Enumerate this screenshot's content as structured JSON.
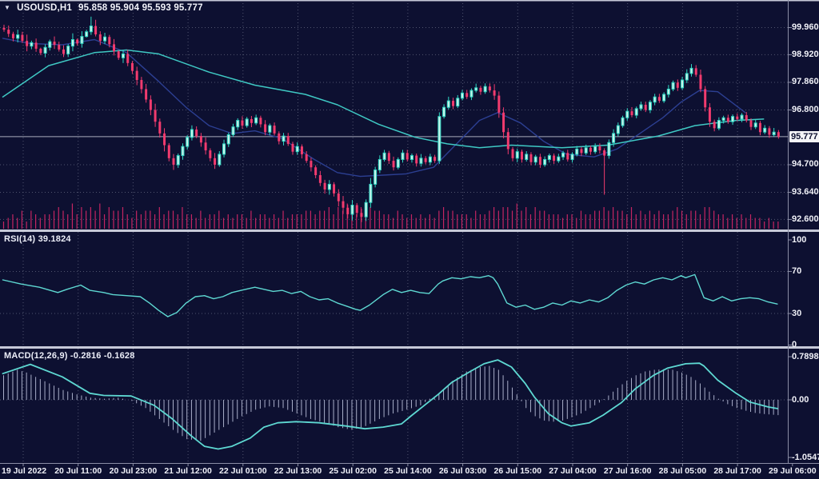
{
  "header": {
    "symbol": "USOUSD,H1",
    "ohlc": "95.858 95.904 95.593 95.777",
    "dropdown_icon": "dropdown-triangle"
  },
  "colors": {
    "background": "#0d1031",
    "grid": "#50546e",
    "bear": "#f23b6e",
    "bull_fill": "#c9f2ea",
    "bull_stroke": "#2fd8c4",
    "ma_slow": "#3fc9c4",
    "ma_fast": "#2c3f92",
    "volume": "#c52562",
    "indicator_line": "#5ed8d2",
    "histogram": "#a9aec9",
    "separator": "#c6c9d8",
    "axis_line": "#8a8da5",
    "text": "#f0f1f8",
    "price_tag_bg": "#f5f5f8",
    "price_tag_text": "#0d1031",
    "current_price_line": "#a9abbd"
  },
  "price_axis": {
    "labels": [
      "99.960",
      "98.920",
      "97.860",
      "96.800",
      "94.700",
      "93.640",
      "92.600"
    ],
    "current": "95.777"
  },
  "time_axis": {
    "labels": [
      "19 Jul 2022",
      "20 Jul 11:00",
      "20 Jul 23:00",
      "21 Jul 12:00",
      "22 Jul 01:00",
      "22 Jul 13:00",
      "25 Jul 02:00",
      "25 Jul 14:00",
      "26 Jul 03:00",
      "26 Jul 15:00",
      "27 Jul 04:00",
      "27 Jul 16:00",
      "28 Jul 05:00",
      "28 Jul 17:00",
      "29 Jul 06:00"
    ]
  },
  "chart_data": [
    {
      "type": "candlestick",
      "title": "USOUSD,H1",
      "panel": "price",
      "ylim": [
        92.08,
        100.9
      ],
      "grid": true,
      "current_price": 95.777,
      "first_open": 99.95,
      "closes": [
        99.88,
        99.72,
        99.55,
        99.68,
        99.45,
        99.25,
        99.38,
        99.15,
        98.98,
        99.2,
        99.42,
        99.3,
        99.12,
        98.95,
        99.25,
        99.5,
        99.35,
        99.62,
        99.8,
        100.02,
        99.7,
        99.45,
        99.6,
        99.32,
        99.05,
        98.8,
        98.95,
        98.6,
        98.3,
        97.95,
        97.6,
        97.2,
        96.8,
        96.35,
        95.9,
        95.45,
        94.95,
        94.7,
        95.05,
        95.4,
        95.75,
        96.05,
        95.8,
        95.55,
        95.25,
        94.95,
        94.7,
        95.1,
        95.5,
        95.85,
        96.15,
        96.4,
        96.2,
        96.45,
        96.3,
        96.5,
        96.25,
        95.95,
        96.2,
        95.9,
        95.6,
        95.8,
        95.5,
        95.2,
        95.4,
        95.1,
        94.85,
        94.6,
        94.3,
        94.0,
        93.75,
        93.95,
        93.6,
        93.3,
        93.05,
        92.8,
        93.15,
        92.85,
        92.7,
        93.25,
        93.95,
        94.5,
        94.9,
        95.15,
        94.85,
        94.6,
        94.9,
        95.15,
        94.9,
        95.05,
        94.75,
        94.95,
        94.8,
        95.0,
        94.85,
        96.55,
        96.9,
        97.15,
        96.95,
        97.25,
        97.45,
        97.3,
        97.55,
        97.65,
        97.5,
        97.7,
        97.55,
        97.35,
        96.7,
        95.95,
        95.3,
        94.95,
        95.2,
        94.9,
        95.1,
        94.8,
        95.0,
        94.7,
        94.9,
        95.05,
        94.85,
        95.0,
        95.15,
        94.9,
        95.1,
        95.3,
        95.15,
        95.35,
        95.2,
        95.4,
        95.25,
        95.05,
        95.55,
        95.9,
        96.2,
        96.5,
        96.75,
        96.6,
        96.85,
        97.0,
        96.8,
        97.1,
        97.3,
        97.15,
        97.4,
        97.6,
        97.85,
        97.65,
        97.95,
        98.2,
        98.4,
        98.15,
        97.6,
        96.9,
        96.35,
        96.1,
        96.4,
        96.5,
        96.35,
        96.55,
        96.45,
        96.6,
        96.4,
        96.15,
        96.3,
        95.95,
        96.1,
        95.85,
        95.95,
        95.78
      ],
      "upper_wicks": "34253624132534261529634251342435463524232433525342324233242323324233243424535243634324233224232434333324233645423232233223232323233234323423323324233443534232323232323242",
      "lower_wicks": "23342533243423352413243342533543554635343324434233233242333234233424334535646454533233232333232322322232322456534323332332323232323234323232233223232332345323232323232322",
      "wick_unit": 0.04,
      "wick_overrides": {
        "131": {
          "low": 93.55
        }
      },
      "volumes": "23435254344565474656574655643545546455464435344534344353443435344455455646576465655443543434343565544435445656657564655444344354455656554645454544565455466544343434332322",
      "ma_slow_points": [
        [
          0,
          97.3
        ],
        [
          10,
          98.5
        ],
        [
          20,
          99.0
        ],
        [
          27,
          99.1
        ],
        [
          34,
          98.95
        ],
        [
          45,
          98.25
        ],
        [
          55,
          97.75
        ],
        [
          66,
          97.4
        ],
        [
          73,
          97.0
        ],
        [
          82,
          96.25
        ],
        [
          90,
          95.75
        ],
        [
          97,
          95.5
        ],
        [
          104,
          95.35
        ],
        [
          111,
          95.45
        ],
        [
          122,
          95.35
        ],
        [
          132,
          95.45
        ],
        [
          143,
          95.8
        ],
        [
          151,
          96.2
        ],
        [
          160,
          96.4
        ],
        [
          166,
          96.45
        ]
      ],
      "ma_fast_points": [
        [
          0,
          99.55
        ],
        [
          6,
          99.35
        ],
        [
          13,
          99.3
        ],
        [
          20,
          99.5
        ],
        [
          27,
          99.0
        ],
        [
          34,
          97.9
        ],
        [
          40,
          96.9
        ],
        [
          45,
          96.2
        ],
        [
          50,
          95.9
        ],
        [
          55,
          96.0
        ],
        [
          61,
          95.7
        ],
        [
          68,
          94.9
        ],
        [
          73,
          94.4
        ],
        [
          78,
          94.25
        ],
        [
          83,
          94.3
        ],
        [
          88,
          94.35
        ],
        [
          94,
          94.6
        ],
        [
          99,
          95.5
        ],
        [
          104,
          96.4
        ],
        [
          108,
          96.7
        ],
        [
          113,
          96.3
        ],
        [
          118,
          95.6
        ],
        [
          123,
          95.1
        ],
        [
          129,
          95.0
        ],
        [
          134,
          95.3
        ],
        [
          139,
          95.9
        ],
        [
          144,
          96.5
        ],
        [
          148,
          97.1
        ],
        [
          152,
          97.55
        ],
        [
          156,
          97.5
        ],
        [
          159,
          97.1
        ],
        [
          162,
          96.7
        ]
      ]
    },
    {
      "type": "line",
      "panel": "rsi",
      "label": "RSI(14)",
      "value": "39.1824",
      "axis_labels": [
        "100",
        "70",
        "30",
        "0"
      ],
      "levels": [
        70,
        30
      ],
      "ylim": [
        0,
        100
      ],
      "points": [
        [
          0,
          62
        ],
        [
          4,
          58
        ],
        [
          8,
          55
        ],
        [
          12,
          50
        ],
        [
          14,
          53
        ],
        [
          17,
          57
        ],
        [
          19,
          52
        ],
        [
          22,
          50
        ],
        [
          24,
          48
        ],
        [
          27,
          47
        ],
        [
          30,
          46
        ],
        [
          32,
          40
        ],
        [
          34,
          33
        ],
        [
          36,
          27
        ],
        [
          38,
          31
        ],
        [
          40,
          40
        ],
        [
          42,
          46
        ],
        [
          44,
          47
        ],
        [
          46,
          44
        ],
        [
          48,
          46
        ],
        [
          50,
          50
        ],
        [
          52,
          52
        ],
        [
          55,
          55
        ],
        [
          57,
          53
        ],
        [
          59,
          51
        ],
        [
          61,
          52
        ],
        [
          63,
          49
        ],
        [
          65,
          51
        ],
        [
          67,
          46
        ],
        [
          69,
          43
        ],
        [
          71,
          44
        ],
        [
          73,
          40
        ],
        [
          75,
          37
        ],
        [
          77,
          34
        ],
        [
          78,
          33
        ],
        [
          80,
          38
        ],
        [
          83,
          48
        ],
        [
          85,
          53
        ],
        [
          87,
          50
        ],
        [
          89,
          52
        ],
        [
          91,
          50
        ],
        [
          93,
          49
        ],
        [
          95,
          58
        ],
        [
          96,
          61
        ],
        [
          98,
          64
        ],
        [
          100,
          63
        ],
        [
          102,
          65
        ],
        [
          104,
          64
        ],
        [
          106,
          66
        ],
        [
          107,
          64
        ],
        [
          108,
          58
        ],
        [
          110,
          40
        ],
        [
          112,
          36
        ],
        [
          114,
          38
        ],
        [
          116,
          34
        ],
        [
          118,
          36
        ],
        [
          120,
          40
        ],
        [
          122,
          38
        ],
        [
          124,
          42
        ],
        [
          126,
          40
        ],
        [
          128,
          43
        ],
        [
          130,
          41
        ],
        [
          132,
          45
        ],
        [
          134,
          52
        ],
        [
          136,
          57
        ],
        [
          138,
          60
        ],
        [
          140,
          58
        ],
        [
          142,
          62
        ],
        [
          144,
          64
        ],
        [
          146,
          62
        ],
        [
          148,
          66
        ],
        [
          149,
          64
        ],
        [
          151,
          67
        ],
        [
          152,
          56
        ],
        [
          153,
          45
        ],
        [
          155,
          42
        ],
        [
          157,
          46
        ],
        [
          159,
          42
        ],
        [
          161,
          44
        ],
        [
          163,
          45
        ],
        [
          165,
          44
        ],
        [
          167,
          41
        ],
        [
          169,
          39
        ]
      ]
    },
    {
      "type": "macd",
      "panel": "macd",
      "label": "MACD(12,26,9)",
      "values": "-0.2816 -0.1628",
      "axis_labels": [
        "0.7898",
        "0.00",
        "-1.0547"
      ],
      "ylim": [
        -1.0547,
        0.7898
      ],
      "signal_points": [
        [
          0,
          0.48
        ],
        [
          6,
          0.65
        ],
        [
          13,
          0.42
        ],
        [
          19,
          0.12
        ],
        [
          22,
          0.08
        ],
        [
          28,
          0.07
        ],
        [
          33,
          -0.1
        ],
        [
          37,
          -0.35
        ],
        [
          41,
          -0.65
        ],
        [
          44,
          -0.85
        ],
        [
          47,
          -0.9
        ],
        [
          50,
          -0.85
        ],
        [
          54,
          -0.7
        ],
        [
          57,
          -0.5
        ],
        [
          60,
          -0.42
        ],
        [
          64,
          -0.4
        ],
        [
          69,
          -0.42
        ],
        [
          75,
          -0.48
        ],
        [
          79,
          -0.53
        ],
        [
          83,
          -0.5
        ],
        [
          87,
          -0.44
        ],
        [
          89,
          -0.3
        ],
        [
          92,
          -0.1
        ],
        [
          95,
          0.1
        ],
        [
          98,
          0.32
        ],
        [
          102,
          0.52
        ],
        [
          105,
          0.66
        ],
        [
          108,
          0.73
        ],
        [
          111,
          0.6
        ],
        [
          114,
          0.3
        ],
        [
          116,
          0.05
        ],
        [
          119,
          -0.25
        ],
        [
          122,
          -0.42
        ],
        [
          124,
          -0.48
        ],
        [
          128,
          -0.42
        ],
        [
          131,
          -0.28
        ],
        [
          135,
          -0.05
        ],
        [
          138,
          0.2
        ],
        [
          142,
          0.45
        ],
        [
          145,
          0.58
        ],
        [
          149,
          0.66
        ],
        [
          152,
          0.67
        ],
        [
          153,
          0.62
        ],
        [
          156,
          0.36
        ],
        [
          160,
          0.12
        ],
        [
          163,
          -0.04
        ],
        [
          167,
          -0.13
        ],
        [
          169,
          -0.16
        ]
      ],
      "hist_points": [
        [
          0,
          0.45
        ],
        [
          3,
          0.55
        ],
        [
          5,
          0.5
        ],
        [
          7,
          0.42
        ],
        [
          10,
          0.3
        ],
        [
          13,
          0.18
        ],
        [
          16,
          0.1
        ],
        [
          19,
          0.04
        ],
        [
          22,
          0.02
        ],
        [
          25,
          0.04
        ],
        [
          28,
          -0.02
        ],
        [
          31,
          -0.15
        ],
        [
          34,
          -0.35
        ],
        [
          37,
          -0.55
        ],
        [
          40,
          -0.72
        ],
        [
          43,
          -0.75
        ],
        [
          46,
          -0.6
        ],
        [
          49,
          -0.45
        ],
        [
          52,
          -0.3
        ],
        [
          55,
          -0.18
        ],
        [
          58,
          -0.12
        ],
        [
          61,
          -0.15
        ],
        [
          64,
          -0.25
        ],
        [
          67,
          -0.35
        ],
        [
          70,
          -0.42
        ],
        [
          73,
          -0.5
        ],
        [
          76,
          -0.55
        ],
        [
          79,
          -0.48
        ],
        [
          82,
          -0.35
        ],
        [
          85,
          -0.25
        ],
        [
          88,
          -0.18
        ],
        [
          91,
          -0.1
        ],
        [
          93,
          0.02
        ],
        [
          95,
          0.1
        ],
        [
          98,
          0.35
        ],
        [
          101,
          0.52
        ],
        [
          104,
          0.6
        ],
        [
          106,
          0.62
        ],
        [
          108,
          0.55
        ],
        [
          110,
          0.35
        ],
        [
          112,
          0.1
        ],
        [
          114,
          -0.15
        ],
        [
          116,
          -0.3
        ],
        [
          118,
          -0.38
        ],
        [
          120,
          -0.4
        ],
        [
          122,
          -0.38
        ],
        [
          124,
          -0.32
        ],
        [
          126,
          -0.25
        ],
        [
          128,
          -0.15
        ],
        [
          130,
          -0.05
        ],
        [
          132,
          0.08
        ],
        [
          134,
          0.22
        ],
        [
          136,
          0.35
        ],
        [
          138,
          0.45
        ],
        [
          140,
          0.52
        ],
        [
          142,
          0.55
        ],
        [
          144,
          0.56
        ],
        [
          146,
          0.55
        ],
        [
          148,
          0.5
        ],
        [
          150,
          0.42
        ],
        [
          152,
          0.3
        ],
        [
          154,
          0.15
        ],
        [
          156,
          0.02
        ],
        [
          158,
          -0.08
        ],
        [
          160,
          -0.15
        ],
        [
          162,
          -0.2
        ],
        [
          164,
          -0.24
        ],
        [
          166,
          -0.26
        ],
        [
          169,
          -0.28
        ]
      ]
    }
  ]
}
